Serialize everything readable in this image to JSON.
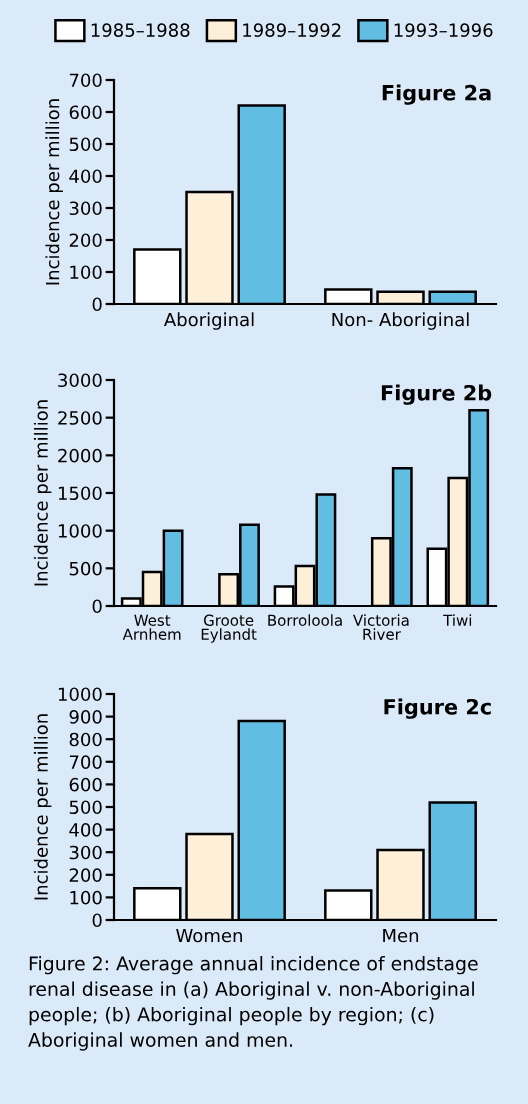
{
  "chart_data": [
    {
      "type": "bar",
      "title": "Figure 2a",
      "ylabel": "Incidence per million",
      "categories": [
        "Aboriginal",
        "Non- Aboriginal"
      ],
      "ylim": [
        0,
        700
      ],
      "yticks": [
        0,
        100,
        200,
        300,
        400,
        500,
        600,
        700
      ],
      "legend": "top",
      "series": [
        {
          "name": "1985–1988",
          "color": "#ffffff",
          "values": [
            170,
            45
          ]
        },
        {
          "name": "1989–1992",
          "color": "#fdefd8",
          "values": [
            350,
            38
          ]
        },
        {
          "name": "1993–1996",
          "color": "#62bde3",
          "values": [
            620,
            38
          ]
        }
      ]
    },
    {
      "type": "bar",
      "title": "Figure 2b",
      "ylabel": "Incidence per million",
      "categories": [
        "West\nArnhem",
        "Groote\nEylandt",
        "Borroloola",
        "Victoria\nRiver",
        "Tiwi"
      ],
      "ylim": [
        0,
        3000
      ],
      "yticks": [
        0,
        500,
        1000,
        1500,
        2000,
        2500,
        3000
      ],
      "series": [
        {
          "color": "#ffffff",
          "values": [
            100,
            null,
            260,
            null,
            760
          ]
        },
        {
          "color": "#fdefd8",
          "values": [
            450,
            420,
            530,
            900,
            1700
          ]
        },
        {
          "color": "#62bde3",
          "values": [
            1000,
            1080,
            1480,
            1830,
            2600
          ]
        }
      ]
    },
    {
      "type": "bar",
      "title": "Figure 2c",
      "ylabel": "Incidence per million",
      "categories": [
        "Women",
        "Men"
      ],
      "ylim": [
        0,
        1000
      ],
      "yticks": [
        0,
        100,
        200,
        300,
        400,
        500,
        600,
        700,
        800,
        900,
        1000
      ],
      "annotations": [
        "Figure 2: Average annual incidence of endstage renal disease in (a) Aboriginal v. non-Aboriginal people; (b) Aboriginal people by region; (c) Aboriginal women and men."
      ],
      "series": [
        {
          "color": "#ffffff",
          "values": [
            140,
            130
          ]
        },
        {
          "color": "#fdefd8",
          "values": [
            380,
            310
          ]
        },
        {
          "color": "#62bde3",
          "values": [
            880,
            520
          ]
        }
      ]
    }
  ]
}
